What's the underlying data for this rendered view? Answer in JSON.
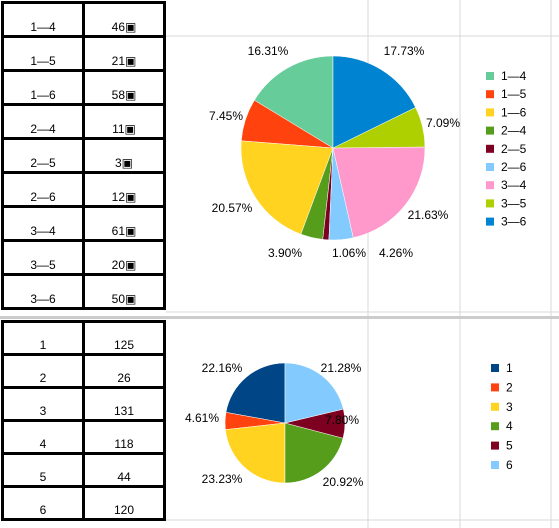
{
  "table_pairs": {
    "rows": [
      {
        "label": "1—4",
        "value": "46▣"
      },
      {
        "label": "1—5",
        "value": "21▣"
      },
      {
        "label": "1—6",
        "value": "58▣"
      },
      {
        "label": "2—4",
        "value": "11▣"
      },
      {
        "label": "2—5",
        "value": "3▣"
      },
      {
        "label": "2—6",
        "value": "12▣"
      },
      {
        "label": "3—4",
        "value": "61▣"
      },
      {
        "label": "3—5",
        "value": "20▣"
      },
      {
        "label": "3—6",
        "value": "50▣"
      }
    ]
  },
  "table_singles": {
    "rows": [
      {
        "label": "1",
        "value": "125"
      },
      {
        "label": "2",
        "value": "26"
      },
      {
        "label": "3",
        "value": "131"
      },
      {
        "label": "4",
        "value": "118"
      },
      {
        "label": "5",
        "value": "44"
      },
      {
        "label": "6",
        "value": "120"
      }
    ]
  },
  "chart_data": [
    {
      "type": "pie",
      "categories": [
        "1—4",
        "1—5",
        "1—6",
        "2—4",
        "2—5",
        "2—6",
        "3—4",
        "3—5",
        "3—6"
      ],
      "values": [
        46,
        21,
        58,
        11,
        3,
        12,
        61,
        20,
        50
      ],
      "percent_labels": [
        "16.31%",
        "7.45%",
        "20.57%",
        "3.90%",
        "1.06%",
        "4.26%",
        "21.63%",
        "7.09%",
        "17.73%"
      ],
      "colors": [
        "#66cc99",
        "#ff420e",
        "#ffd320",
        "#579d1c",
        "#7e0021",
        "#83caff",
        "#ff99cc",
        "#aecf00",
        "#0084d1"
      ],
      "legend": "right"
    },
    {
      "type": "pie",
      "categories": [
        "1",
        "2",
        "3",
        "4",
        "5",
        "6"
      ],
      "values": [
        125,
        26,
        131,
        118,
        44,
        120
      ],
      "percent_labels": [
        "22.16%",
        "4.61%",
        "23.23%",
        "20.92%",
        "7.80%",
        "21.28%"
      ],
      "colors": [
        "#004586",
        "#ff420e",
        "#ffd320",
        "#579d1c",
        "#7e0021",
        "#83caff"
      ],
      "legend": "right"
    }
  ]
}
